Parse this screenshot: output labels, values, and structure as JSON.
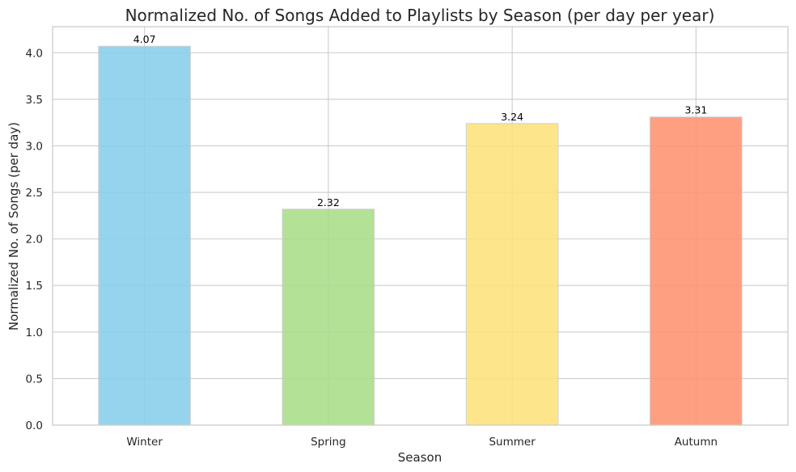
{
  "chart_data": {
    "type": "bar",
    "title": "Normalized No. of Songs Added to Playlists by Season (per day per year)",
    "xlabel": "Season",
    "ylabel": "Normalized No. of Songs (per day)",
    "categories": [
      "Winter",
      "Spring",
      "Summer",
      "Autumn"
    ],
    "values": [
      4.07,
      2.32,
      3.24,
      3.31
    ],
    "value_labels": [
      "4.07",
      "2.32",
      "3.24",
      "3.31"
    ],
    "colors": [
      "#87ceeb",
      "#a8dd87",
      "#fde17a",
      "#ff9270"
    ],
    "ylim": [
      0,
      4.28
    ],
    "yticks": [
      0.0,
      0.5,
      1.0,
      1.5,
      2.0,
      2.5,
      3.0,
      3.5,
      4.0
    ],
    "ytick_labels": [
      "0.0",
      "0.5",
      "1.0",
      "1.5",
      "2.0",
      "2.5",
      "3.0",
      "3.5",
      "4.0"
    ],
    "grid": true,
    "legend": "none"
  }
}
